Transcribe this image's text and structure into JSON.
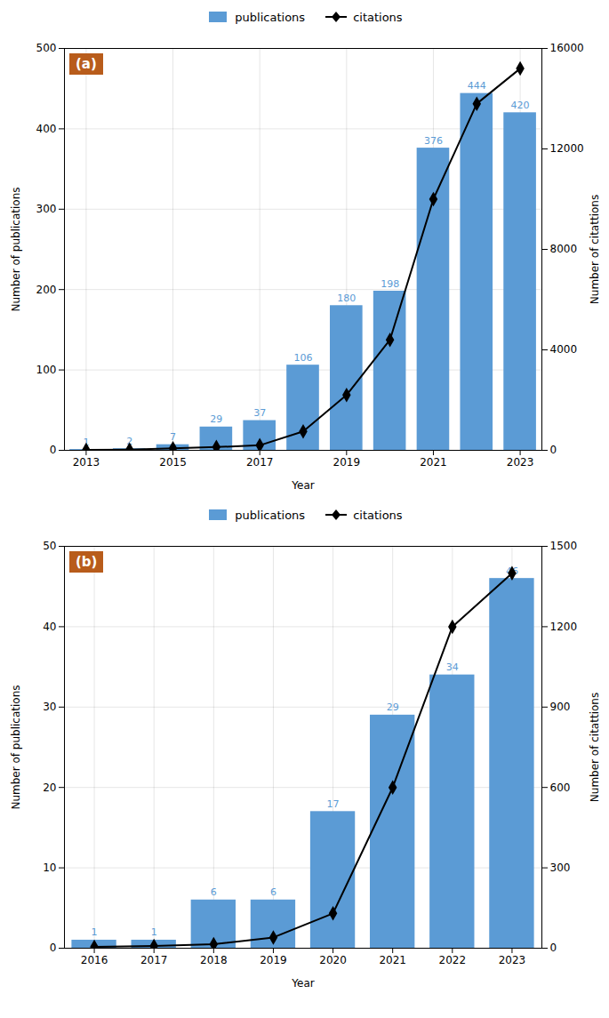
{
  "chart_data": [
    {
      "type": "bar",
      "title": "(a)",
      "xlabel": "Year",
      "ylabel": "Number of publications",
      "y2label": "Number of citattions",
      "x": [
        2013,
        2014,
        2015,
        2016,
        2017,
        2018,
        2019,
        2020,
        2021,
        2022,
        2023
      ],
      "xlim": [
        2012.5,
        2023.5
      ],
      "xticks": [
        2013,
        2015,
        2017,
        2019,
        2021,
        2023
      ],
      "ylim": [
        0,
        500
      ],
      "yticks": [
        0,
        100,
        200,
        300,
        400,
        500
      ],
      "y2lim": [
        0,
        16000
      ],
      "y2ticks": [
        0,
        4000,
        8000,
        12000,
        16000
      ],
      "grid": true,
      "legend": "top",
      "data_labels": true,
      "series": [
        {
          "name": "publications",
          "type": "bar",
          "color": "#5B9BD5",
          "values": [
            1,
            2,
            7,
            29,
            37,
            106,
            180,
            198,
            376,
            444,
            420
          ]
        },
        {
          "name": "citations",
          "type": "line",
          "axis": "y2",
          "color": "#000000",
          "marker": "diamond",
          "values": [
            15,
            30,
            80,
            130,
            200,
            750,
            2200,
            4400,
            10000,
            13800,
            15200
          ]
        }
      ]
    },
    {
      "type": "bar",
      "title": "(b)",
      "xlabel": "Year",
      "ylabel": "Number of publications",
      "y2label": "Number of citattions",
      "x": [
        2016,
        2017,
        2018,
        2019,
        2020,
        2021,
        2022,
        2023
      ],
      "xlim": [
        2015.5,
        2023.5
      ],
      "xticks": [
        2016,
        2017,
        2018,
        2019,
        2020,
        2021,
        2022,
        2023
      ],
      "ylim": [
        0,
        50
      ],
      "yticks": [
        0,
        10,
        20,
        30,
        40,
        50
      ],
      "y2lim": [
        0,
        1500
      ],
      "y2ticks": [
        0,
        300,
        600,
        900,
        1200,
        1500
      ],
      "grid": true,
      "legend": "top",
      "data_labels": true,
      "series": [
        {
          "name": "publications",
          "type": "bar",
          "color": "#5B9BD5",
          "values": [
            1,
            1,
            6,
            6,
            17,
            29,
            34,
            46
          ]
        },
        {
          "name": "citations",
          "type": "line",
          "axis": "y2",
          "color": "#000000",
          "marker": "diamond",
          "values": [
            5,
            8,
            15,
            40,
            130,
            600,
            1200,
            1400
          ]
        }
      ]
    }
  ]
}
